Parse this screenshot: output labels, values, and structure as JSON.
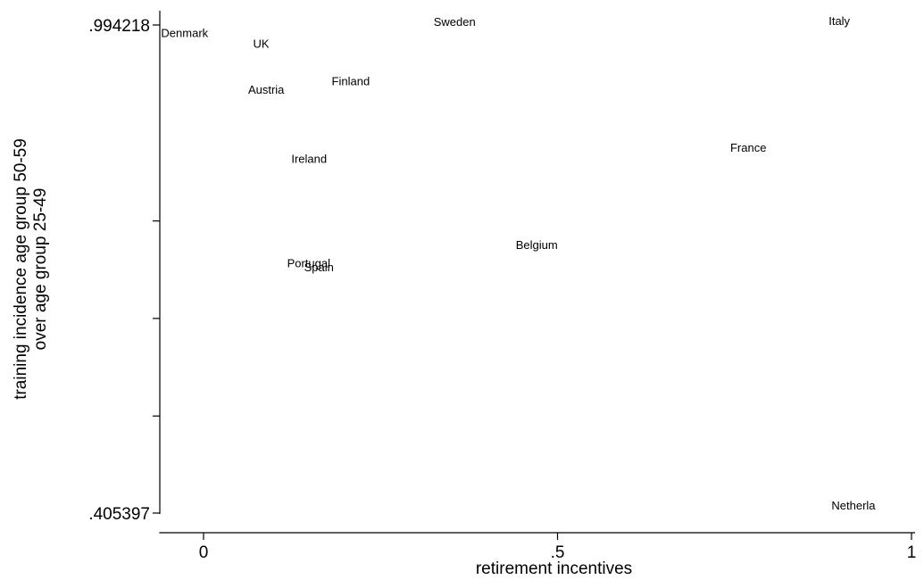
{
  "chart_data": {
    "type": "scatter",
    "title": "",
    "xlabel": "retirement incentives",
    "ylabel_lines": [
      "training incidence age group 50-59",
      "over age group 25-49"
    ],
    "xlim": [
      0,
      1
    ],
    "ylim": [
      0.405397,
      0.994218
    ],
    "x_ticks": [
      {
        "value": 0,
        "label": "0"
      },
      {
        "value": 0.5,
        "label": ".5"
      },
      {
        "value": 1,
        "label": "1"
      }
    ],
    "y_ticks": [
      {
        "value": 0.405397,
        "label": ".405397"
      },
      {
        "value": 0.5225,
        "label": ""
      },
      {
        "value": 0.6402,
        "label": ""
      },
      {
        "value": 0.7578,
        "label": ""
      },
      {
        "value": 0.994218,
        "label": ".994218"
      }
    ],
    "grid": false,
    "marker": "country-name label",
    "points": [
      {
        "label": "Denmark",
        "x": -0.06,
        "y": 0.9853
      },
      {
        "label": "UK",
        "x": 0.07,
        "y": 0.9722
      },
      {
        "label": "Sweden",
        "x": 0.325,
        "y": 0.9985
      },
      {
        "label": "Italy",
        "x": 0.883,
        "y": 0.9996
      },
      {
        "label": "Finland",
        "x": 0.181,
        "y": 0.927
      },
      {
        "label": "Austria",
        "x": 0.063,
        "y": 0.9166
      },
      {
        "label": "France",
        "x": 0.744,
        "y": 0.847
      },
      {
        "label": "Ireland",
        "x": 0.124,
        "y": 0.8332
      },
      {
        "label": "Belgium",
        "x": 0.441,
        "y": 0.7293
      },
      {
        "label": "Portugal",
        "x": 0.118,
        "y": 0.7075
      },
      {
        "label": "Spain",
        "x": 0.142,
        "y": 0.7024
      },
      {
        "label": "Netherla",
        "x": 0.887,
        "y": 0.415
      }
    ]
  }
}
